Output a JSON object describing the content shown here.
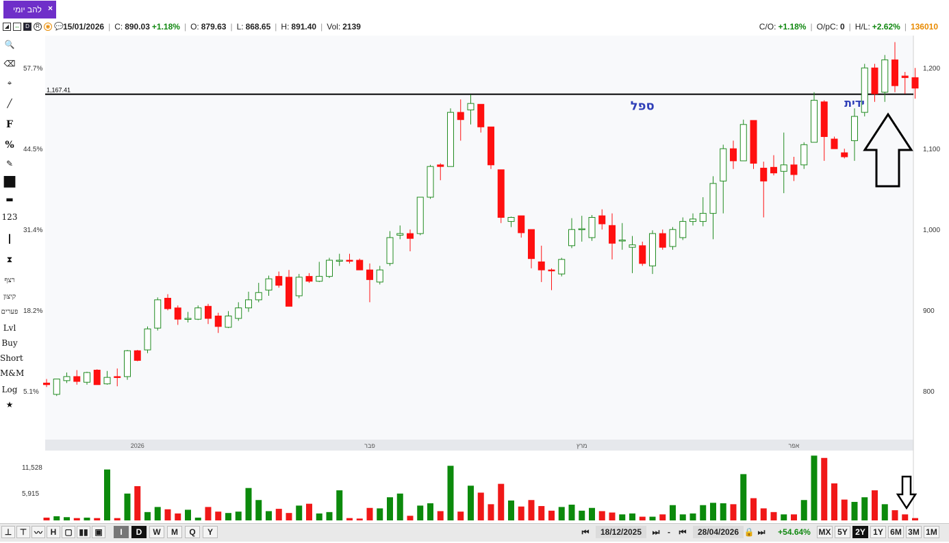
{
  "tab": {
    "label": "להב יומי",
    "close": "×"
  },
  "infobar": {
    "date": "15/01/2026",
    "close_label": "C:",
    "close_value": "890.03",
    "change": "+1.18%",
    "open_label": "O:",
    "open_value": "879.63",
    "low_label": "L:",
    "low_value": "868.65",
    "high_label": "H:",
    "high_value": "891.40",
    "vol_label": "Vol:",
    "vol_value": "2139",
    "co_label": "C/O:",
    "co_value": "+1.18%",
    "opc_label": "O/pC:",
    "opc_value": "0",
    "hl_label": "H/L:",
    "hl_value": "+2.62%",
    "symbol_id": "136010"
  },
  "left_tools": [
    {
      "name": "search-icon",
      "label": "🔍"
    },
    {
      "name": "eraser-icon",
      "label": "⌫"
    },
    {
      "name": "crosshair-icon",
      "label": "⌖"
    },
    {
      "name": "line-tool-icon",
      "label": "╱"
    },
    {
      "name": "fibonacci-tool",
      "label": "F"
    },
    {
      "name": "percent-tool",
      "label": "%"
    },
    {
      "name": "edit-icon",
      "label": "✎"
    },
    {
      "name": "color-swatch",
      "label": "■"
    },
    {
      "name": "line-width-icon",
      "label": "▬"
    },
    {
      "name": "number-tool",
      "label": "123"
    },
    {
      "name": "vertical-line-icon",
      "label": "┃"
    },
    {
      "name": "candle-type-icon",
      "label": "⧗"
    },
    {
      "name": "tool-retzef",
      "label": "רצף"
    },
    {
      "name": "tool-kitzun",
      "label": "קיצון"
    },
    {
      "name": "tool-paarim",
      "label": "פערים"
    },
    {
      "name": "tool-lvl",
      "label": "Lvl"
    },
    {
      "name": "tool-buy",
      "label": "Buy"
    },
    {
      "name": "tool-short",
      "label": "Short"
    },
    {
      "name": "tool-mm",
      "label": "M&M"
    },
    {
      "name": "tool-log",
      "label": "Log"
    },
    {
      "name": "star-icon",
      "label": "★"
    }
  ],
  "chart_data": {
    "type": "candlestick",
    "ylim": [
      740,
      1240
    ],
    "y_ticks": [
      800,
      900,
      1000,
      1100,
      1200
    ],
    "y_tick_labels": [
      "800",
      "900",
      "1,000",
      "1,100",
      "1,200"
    ],
    "pct_ticks": [
      {
        "value": 800,
        "label": "5.1%"
      },
      {
        "value": 900,
        "label": "18.2%"
      },
      {
        "value": 1000,
        "label": "31.4%"
      },
      {
        "value": 1100,
        "label": "44.5%"
      },
      {
        "value": 1200,
        "label": "57.7%"
      }
    ],
    "time_labels": [
      {
        "index": 9,
        "label": "2026"
      },
      {
        "index": 32,
        "label": "פבר"
      },
      {
        "index": 53,
        "label": "מרץ"
      },
      {
        "index": 74,
        "label": "אפר"
      }
    ],
    "horizontal_line": {
      "value": 1167.41,
      "label": "1,167.41"
    },
    "annotations": [
      {
        "text": "ספל",
        "index": 59,
        "value": 1148
      },
      {
        "text": "ידית",
        "index": 80,
        "value": 1152
      }
    ],
    "volume_ticks": [
      {
        "value": 5915,
        "label": "5,915"
      },
      {
        "value": 11528,
        "label": "11,528"
      }
    ],
    "volume_max": 14500,
    "candles": [
      {
        "o": 810,
        "h": 815,
        "l": 805,
        "c": 808,
        "v": 600
      },
      {
        "o": 796,
        "h": 812,
        "l": 794,
        "c": 815,
        "v": 900
      },
      {
        "o": 813,
        "h": 823,
        "l": 810,
        "c": 818,
        "v": 700
      },
      {
        "o": 818,
        "h": 826,
        "l": 808,
        "c": 812,
        "v": 500
      },
      {
        "o": 811,
        "h": 824,
        "l": 808,
        "c": 823,
        "v": 600
      },
      {
        "o": 826,
        "h": 827,
        "l": 809,
        "c": 808,
        "v": 500
      },
      {
        "o": 809,
        "h": 825,
        "l": 808,
        "c": 817,
        "v": 11000
      },
      {
        "o": 818,
        "h": 828,
        "l": 806,
        "c": 817,
        "v": 500
      },
      {
        "o": 818,
        "h": 851,
        "l": 814,
        "c": 850,
        "v": 5800
      },
      {
        "o": 850,
        "h": 851,
        "l": 837,
        "c": 838,
        "v": 7400
      },
      {
        "o": 851,
        "h": 880,
        "l": 847,
        "c": 877,
        "v": 1800
      },
      {
        "o": 878,
        "h": 916,
        "l": 875,
        "c": 913,
        "v": 2900
      },
      {
        "o": 915,
        "h": 920,
        "l": 900,
        "c": 902,
        "v": 2400
      },
      {
        "o": 903,
        "h": 906,
        "l": 882,
        "c": 889,
        "v": 1500
      },
      {
        "o": 890,
        "h": 898,
        "l": 885,
        "c": 890,
        "v": 2300
      },
      {
        "o": 889,
        "h": 906,
        "l": 888,
        "c": 903,
        "v": 600
      },
      {
        "o": 905,
        "h": 908,
        "l": 883,
        "c": 890,
        "v": 2900
      },
      {
        "o": 893,
        "h": 897,
        "l": 872,
        "c": 880,
        "v": 1900
      },
      {
        "o": 879,
        "h": 899,
        "l": 878,
        "c": 893,
        "v": 1600
      },
      {
        "o": 890,
        "h": 910,
        "l": 887,
        "c": 903,
        "v": 1900
      },
      {
        "o": 903,
        "h": 923,
        "l": 898,
        "c": 913,
        "v": 7000
      },
      {
        "o": 913,
        "h": 934,
        "l": 910,
        "c": 922,
        "v": 4400
      },
      {
        "o": 925,
        "h": 943,
        "l": 918,
        "c": 939,
        "v": 2000
      },
      {
        "o": 942,
        "h": 948,
        "l": 928,
        "c": 931,
        "v": 2500
      },
      {
        "o": 941,
        "h": 950,
        "l": 905,
        "c": 905,
        "v": 1600
      },
      {
        "o": 918,
        "h": 945,
        "l": 915,
        "c": 941,
        "v": 3200
      },
      {
        "o": 942,
        "h": 946,
        "l": 934,
        "c": 936,
        "v": 3600
      },
      {
        "o": 936,
        "h": 960,
        "l": 935,
        "c": 942,
        "v": 1500
      },
      {
        "o": 942,
        "h": 965,
        "l": 940,
        "c": 962,
        "v": 1800
      },
      {
        "o": 962,
        "h": 970,
        "l": 955,
        "c": 962,
        "v": 6500
      },
      {
        "o": 962,
        "h": 970,
        "l": 958,
        "c": 961,
        "v": 500
      },
      {
        "o": 962,
        "h": 964,
        "l": 950,
        "c": 950,
        "v": 400
      },
      {
        "o": 950,
        "h": 958,
        "l": 910,
        "c": 938,
        "v": 2700
      },
      {
        "o": 935,
        "h": 955,
        "l": 932,
        "c": 950,
        "v": 2600
      },
      {
        "o": 958,
        "h": 998,
        "l": 955,
        "c": 990,
        "v": 5000
      },
      {
        "o": 993,
        "h": 1005,
        "l": 988,
        "c": 995,
        "v": 5800
      },
      {
        "o": 995,
        "h": 1000,
        "l": 973,
        "c": 989,
        "v": 1000
      },
      {
        "o": 995,
        "h": 1040,
        "l": 993,
        "c": 1040,
        "v": 3200
      },
      {
        "o": 1040,
        "h": 1080,
        "l": 1038,
        "c": 1078,
        "v": 3700
      },
      {
        "o": 1080,
        "h": 1082,
        "l": 1061,
        "c": 1078,
        "v": 2000
      },
      {
        "o": 1078,
        "h": 1150,
        "l": 1078,
        "c": 1145,
        "v": 11800
      },
      {
        "o": 1145,
        "h": 1161,
        "l": 1110,
        "c": 1136,
        "v": 1900
      },
      {
        "o": 1148,
        "h": 1167,
        "l": 1130,
        "c": 1156,
        "v": 7500
      },
      {
        "o": 1155,
        "h": 1155,
        "l": 1120,
        "c": 1127,
        "v": 6000
      },
      {
        "o": 1127,
        "h": 1127,
        "l": 1075,
        "c": 1080,
        "v": 3500
      },
      {
        "o": 1074,
        "h": 1074,
        "l": 1008,
        "c": 1015,
        "v": 7900
      },
      {
        "o": 1010,
        "h": 1016,
        "l": 1003,
        "c": 1015,
        "v": 4300
      },
      {
        "o": 1017,
        "h": 1017,
        "l": 990,
        "c": 996,
        "v": 3000
      },
      {
        "o": 1000,
        "h": 1000,
        "l": 952,
        "c": 964,
        "v": 4400
      },
      {
        "o": 960,
        "h": 980,
        "l": 935,
        "c": 950,
        "v": 3100
      },
      {
        "o": 950,
        "h": 952,
        "l": 925,
        "c": 949,
        "v": 2100
      },
      {
        "o": 945,
        "h": 965,
        "l": 942,
        "c": 963,
        "v": 2900
      },
      {
        "o": 980,
        "h": 1014,
        "l": 977,
        "c": 1000,
        "v": 3400
      },
      {
        "o": 1000,
        "h": 1017,
        "l": 985,
        "c": 1001,
        "v": 2100
      },
      {
        "o": 990,
        "h": 1018,
        "l": 986,
        "c": 1015,
        "v": 2700
      },
      {
        "o": 1017,
        "h": 1025,
        "l": 1000,
        "c": 1007,
        "v": 2000
      },
      {
        "o": 1005,
        "h": 1020,
        "l": 963,
        "c": 983,
        "v": 1700
      },
      {
        "o": 986,
        "h": 1008,
        "l": 975,
        "c": 987,
        "v": 1300
      },
      {
        "o": 978,
        "h": 992,
        "l": 946,
        "c": 981,
        "v": 1500
      },
      {
        "o": 980,
        "h": 985,
        "l": 955,
        "c": 958,
        "v": 800
      },
      {
        "o": 955,
        "h": 999,
        "l": 945,
        "c": 995,
        "v": 800
      },
      {
        "o": 995,
        "h": 1000,
        "l": 975,
        "c": 978,
        "v": 1300
      },
      {
        "o": 979,
        "h": 1003,
        "l": 975,
        "c": 1000,
        "v": 3300
      },
      {
        "o": 990,
        "h": 1015,
        "l": 987,
        "c": 1010,
        "v": 1300
      },
      {
        "o": 1010,
        "h": 1020,
        "l": 1005,
        "c": 1013,
        "v": 1500
      },
      {
        "o": 1010,
        "h": 1040,
        "l": 1004,
        "c": 1020,
        "v": 3300
      },
      {
        "o": 1020,
        "h": 1066,
        "l": 988,
        "c": 1057,
        "v": 3800
      },
      {
        "o": 1060,
        "h": 1105,
        "l": 1020,
        "c": 1100,
        "v": 3700
      },
      {
        "o": 1100,
        "h": 1110,
        "l": 1075,
        "c": 1085,
        "v": 3500
      },
      {
        "o": 1085,
        "h": 1136,
        "l": 1085,
        "c": 1130,
        "v": 10000
      },
      {
        "o": 1135,
        "h": 1135,
        "l": 1075,
        "c": 1082,
        "v": 4800
      },
      {
        "o": 1076,
        "h": 1084,
        "l": 1015,
        "c": 1060,
        "v": 2600
      },
      {
        "o": 1077,
        "h": 1092,
        "l": 1067,
        "c": 1070,
        "v": 1800
      },
      {
        "o": 1072,
        "h": 1120,
        "l": 1045,
        "c": 1080,
        "v": 1300
      },
      {
        "o": 1080,
        "h": 1090,
        "l": 1060,
        "c": 1068,
        "v": 1300
      },
      {
        "o": 1080,
        "h": 1108,
        "l": 1075,
        "c": 1105,
        "v": 4400
      },
      {
        "o": 1108,
        "h": 1170,
        "l": 1108,
        "c": 1160,
        "v": 14000
      },
      {
        "o": 1158,
        "h": 1160,
        "l": 1085,
        "c": 1115,
        "v": 13500
      },
      {
        "o": 1112,
        "h": 1115,
        "l": 1100,
        "c": 1100,
        "v": 8000
      },
      {
        "o": 1095,
        "h": 1100,
        "l": 1088,
        "c": 1090,
        "v": 4500
      },
      {
        "o": 1110,
        "h": 1150,
        "l": 1085,
        "c": 1140,
        "v": 4000
      },
      {
        "o": 1145,
        "h": 1205,
        "l": 1140,
        "c": 1200,
        "v": 5000
      },
      {
        "o": 1200,
        "h": 1205,
        "l": 1158,
        "c": 1168,
        "v": 6500
      },
      {
        "o": 1170,
        "h": 1216,
        "l": 1158,
        "c": 1210,
        "v": 3500
      },
      {
        "o": 1210,
        "h": 1232,
        "l": 1170,
        "c": 1178,
        "v": 2200
      },
      {
        "o": 1190,
        "h": 1195,
        "l": 1168,
        "c": 1188,
        "v": 1300
      },
      {
        "o": 1188,
        "h": 1200,
        "l": 1162,
        "c": 1175,
        "v": 500
      }
    ]
  },
  "bottom": {
    "tools": [
      "⊥",
      "⊤",
      "〰",
      "H",
      "▢",
      "▮▮",
      "▣"
    ],
    "periods": [
      "I",
      "D",
      "W",
      "M",
      "Q",
      "Y"
    ],
    "nav_first": "⏮",
    "nav_last": "⏭",
    "start_date": "18/12/2025",
    "dash": "-",
    "end_date": "28/04/2026",
    "lock_icon": "🔒",
    "range_change": "+54.64%",
    "ranges": [
      "MX",
      "5Y",
      "2Y",
      "1Y",
      "6M",
      "3M",
      "1M"
    ],
    "active_range": "2Y"
  },
  "colors": {
    "up_border": "#1f8a1f",
    "down_fill": "#ff1010",
    "volume_up": "#0c8a0c",
    "volume_down": "#f01818",
    "annotation": "#2f3fb8",
    "plot_bg": "#f8f9fb"
  }
}
